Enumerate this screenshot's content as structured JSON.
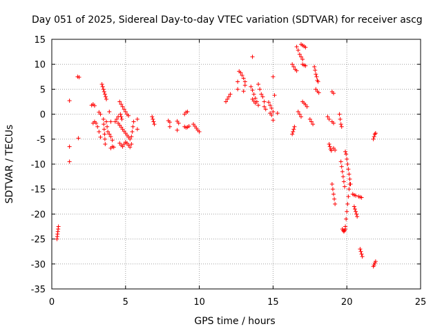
{
  "chart_data": {
    "type": "scatter",
    "title": "Day 051 of 2025, Sidereal Day-to-day VTEC variation (SDTVAR) for receiver ascg",
    "xlabel": "GPS time / hours",
    "ylabel": "SDTVAR / TECUs",
    "xlim": [
      0,
      25
    ],
    "ylim": [
      -35,
      15
    ],
    "xticks": [
      0,
      5,
      10,
      15,
      20,
      25
    ],
    "yticks": [
      -35,
      -30,
      -25,
      -20,
      -15,
      -10,
      -5,
      0,
      5,
      10,
      15
    ],
    "grid": true,
    "marker": "+",
    "color": "#ff0000",
    "segments": [
      [
        [
          0.35,
          -25.0
        ],
        [
          0.37,
          -24.5
        ],
        [
          0.39,
          -24.0
        ],
        [
          0.41,
          -23.5
        ],
        [
          0.43,
          -23.0
        ],
        [
          0.45,
          -22.5
        ]
      ],
      [
        [
          1.2,
          2.7
        ]
      ],
      [
        [
          1.2,
          -6.5
        ]
      ],
      [
        [
          1.2,
          -9.5
        ]
      ],
      [
        [
          1.75,
          7.5
        ],
        [
          1.85,
          7.4
        ]
      ],
      [
        [
          1.8,
          -4.8
        ]
      ],
      [
        [
          2.7,
          1.8
        ],
        [
          2.8,
          2.0
        ],
        [
          2.9,
          1.7
        ]
      ],
      [
        [
          2.8,
          -1.8
        ],
        [
          2.9,
          -1.5
        ],
        [
          3.0,
          -1.8
        ],
        [
          3.1,
          -2.5
        ],
        [
          3.2,
          -3.5
        ],
        [
          3.3,
          -4.6
        ]
      ],
      [
        [
          3.2,
          0.4
        ],
        [
          3.3,
          0.0
        ]
      ],
      [
        [
          3.4,
          6.0
        ],
        [
          3.45,
          5.5
        ],
        [
          3.5,
          5.0
        ],
        [
          3.55,
          4.5
        ],
        [
          3.6,
          4.0
        ],
        [
          3.65,
          3.5
        ],
        [
          3.7,
          3.0
        ]
      ],
      [
        [
          3.5,
          -1.0
        ],
        [
          3.52,
          -2.0
        ],
        [
          3.55,
          -3.0
        ],
        [
          3.58,
          -4.0
        ],
        [
          3.6,
          -5.0
        ],
        [
          3.62,
          -6.0
        ]
      ],
      [
        [
          3.7,
          -1.5
        ],
        [
          3.75,
          -2.5
        ],
        [
          3.8,
          -3.5
        ]
      ],
      [
        [
          3.9,
          0.5
        ],
        [
          4.0,
          -1.5
        ]
      ],
      [
        [
          3.9,
          -4.0
        ],
        [
          4.0,
          -4.5
        ],
        [
          4.1,
          -5.2
        ]
      ],
      [
        [
          4.0,
          -6.8
        ],
        [
          4.1,
          -6.5
        ],
        [
          4.2,
          -6.6
        ]
      ],
      [
        [
          4.3,
          -1.5
        ],
        [
          4.4,
          -1.0
        ],
        [
          4.5,
          -0.5
        ]
      ],
      [
        [
          4.5,
          -1.8
        ],
        [
          4.6,
          -2.2
        ],
        [
          4.7,
          -2.6
        ],
        [
          4.8,
          -3.0
        ],
        [
          4.9,
          -3.4
        ],
        [
          5.0,
          -3.8
        ],
        [
          5.1,
          -4.2
        ],
        [
          5.2,
          -4.6
        ],
        [
          5.3,
          -5.0
        ]
      ],
      [
        [
          4.6,
          2.5
        ],
        [
          4.7,
          2.0
        ],
        [
          4.8,
          1.5
        ],
        [
          4.9,
          1.0
        ],
        [
          5.0,
          0.5
        ],
        [
          5.1,
          0.0
        ],
        [
          5.2,
          -0.3
        ]
      ],
      [
        [
          4.6,
          -5.8
        ],
        [
          4.7,
          -6.2
        ],
        [
          4.8,
          -6.5
        ],
        [
          4.9,
          -6.0
        ],
        [
          5.0,
          -5.6
        ],
        [
          5.1,
          -5.8
        ],
        [
          5.2,
          -6.2
        ],
        [
          5.3,
          -6.6
        ],
        [
          5.4,
          -6.0
        ]
      ],
      [
        [
          4.65,
          0.0
        ],
        [
          4.7,
          -0.5
        ],
        [
          4.75,
          -1.0
        ]
      ],
      [
        [
          5.4,
          -4.5
        ],
        [
          5.45,
          -3.5
        ],
        [
          5.5,
          -2.5
        ],
        [
          5.55,
          -1.5
        ]
      ],
      [
        [
          5.8,
          -1.0
        ],
        [
          5.8,
          -3.0
        ]
      ],
      [
        [
          6.8,
          -0.5
        ],
        [
          6.85,
          -1.0
        ],
        [
          6.9,
          -1.5
        ],
        [
          6.95,
          -2.0
        ]
      ],
      [
        [
          7.9,
          -1.3
        ],
        [
          8.0,
          -1.6
        ]
      ],
      [
        [
          8.0,
          -2.5
        ]
      ],
      [
        [
          8.5,
          -1.4
        ],
        [
          8.6,
          -1.8
        ]
      ],
      [
        [
          8.5,
          -3.2
        ]
      ],
      [
        [
          9.0,
          0.0
        ],
        [
          9.1,
          0.4
        ],
        [
          9.2,
          0.5
        ]
      ],
      [
        [
          9.0,
          -2.5
        ],
        [
          9.1,
          -2.7
        ],
        [
          9.2,
          -2.6
        ],
        [
          9.3,
          -2.4
        ]
      ],
      [
        [
          9.6,
          -2.0
        ],
        [
          9.7,
          -2.4
        ],
        [
          9.8,
          -2.8
        ],
        [
          9.9,
          -3.2
        ],
        [
          10.0,
          -3.5
        ]
      ],
      [
        [
          11.8,
          2.5
        ],
        [
          11.9,
          3.0
        ],
        [
          12.0,
          3.5
        ],
        [
          12.1,
          4.0
        ]
      ],
      [
        [
          12.6,
          6.5
        ]
      ],
      [
        [
          12.6,
          5.0
        ]
      ],
      [
        [
          12.7,
          8.6
        ],
        [
          12.8,
          8.3
        ]
      ],
      [
        [
          12.9,
          7.8
        ],
        [
          13.0,
          7.2
        ],
        [
          13.1,
          6.5
        ],
        [
          13.1,
          5.8
        ]
      ],
      [
        [
          13.0,
          4.6
        ]
      ],
      [
        [
          13.6,
          11.5
        ]
      ],
      [
        [
          13.5,
          5.5
        ],
        [
          13.6,
          4.8
        ],
        [
          13.7,
          4.0
        ],
        [
          13.8,
          3.2
        ],
        [
          13.9,
          2.5
        ],
        [
          14.0,
          1.8
        ]
      ],
      [
        [
          13.6,
          3.0
        ],
        [
          13.7,
          2.6
        ],
        [
          13.8,
          2.2
        ]
      ],
      [
        [
          14.0,
          6.0
        ],
        [
          14.1,
          5.0
        ],
        [
          14.2,
          4.0
        ]
      ],
      [
        [
          14.3,
          3.5
        ],
        [
          14.4,
          2.5
        ]
      ],
      [
        [
          14.4,
          1.5
        ],
        [
          14.5,
          1.0
        ]
      ],
      [
        [
          14.7,
          2.4
        ],
        [
          14.8,
          1.8
        ],
        [
          14.9,
          1.2
        ],
        [
          15.0,
          0.5
        ]
      ],
      [
        [
          14.8,
          0.2
        ],
        [
          14.9,
          -0.2
        ]
      ],
      [
        [
          15.0,
          7.5
        ]
      ],
      [
        [
          15.1,
          3.8
        ]
      ],
      [
        [
          15.0,
          -1.2
        ]
      ],
      [
        [
          15.3,
          0.2
        ]
      ],
      [
        [
          16.3,
          10.0
        ],
        [
          16.4,
          9.5
        ],
        [
          16.5,
          9.0
        ],
        [
          16.6,
          8.7
        ]
      ],
      [
        [
          16.6,
          13.5
        ],
        [
          16.7,
          12.8
        ],
        [
          16.8,
          12.0
        ],
        [
          16.9,
          11.5
        ],
        [
          17.0,
          11.0
        ]
      ],
      [
        [
          16.9,
          14.0
        ],
        [
          17.0,
          13.8
        ],
        [
          17.1,
          13.6
        ],
        [
          17.2,
          13.4
        ]
      ],
      [
        [
          17.0,
          10.0
        ],
        [
          17.1,
          9.8
        ],
        [
          17.2,
          9.7
        ]
      ],
      [
        [
          16.3,
          -4.0
        ],
        [
          16.35,
          -3.5
        ],
        [
          16.4,
          -3.0
        ],
        [
          16.45,
          -2.5
        ]
      ],
      [
        [
          16.7,
          0.5
        ],
        [
          16.8,
          0.0
        ],
        [
          16.9,
          -0.5
        ]
      ],
      [
        [
          17.0,
          2.5
        ],
        [
          17.1,
          2.2
        ],
        [
          17.2,
          1.9
        ],
        [
          17.3,
          1.5
        ]
      ],
      [
        [
          17.5,
          -1.0
        ],
        [
          17.6,
          -1.5
        ],
        [
          17.7,
          -2.0
        ]
      ],
      [
        [
          17.8,
          9.5
        ],
        [
          17.85,
          8.8
        ],
        [
          17.9,
          8.0
        ],
        [
          17.95,
          7.5
        ],
        [
          18.0,
          6.8
        ],
        [
          18.05,
          6.5
        ]
      ],
      [
        [
          17.9,
          5.0
        ],
        [
          18.0,
          4.6
        ],
        [
          18.1,
          4.3
        ]
      ],
      [
        [
          18.7,
          -0.5
        ],
        [
          18.8,
          -1.0
        ]
      ],
      [
        [
          18.8,
          -6.0
        ],
        [
          18.85,
          -6.5
        ],
        [
          18.9,
          -7.0
        ],
        [
          18.95,
          -7.3
        ]
      ],
      [
        [
          19.0,
          4.5
        ],
        [
          19.1,
          4.2
        ]
      ],
      [
        [
          19.0,
          -1.5
        ],
        [
          19.1,
          -1.8
        ]
      ],
      [
        [
          19.1,
          -6.8
        ],
        [
          19.2,
          -7.2
        ]
      ],
      [
        [
          19.0,
          -14.0
        ],
        [
          19.05,
          -15.0
        ],
        [
          19.1,
          -16.0
        ],
        [
          19.15,
          -17.0
        ],
        [
          19.2,
          -18.0
        ]
      ],
      [
        [
          19.5,
          0.0
        ],
        [
          19.55,
          -1.0
        ],
        [
          19.6,
          -2.0
        ],
        [
          19.65,
          -2.5
        ]
      ],
      [
        [
          19.6,
          -9.5
        ],
        [
          19.65,
          -10.5
        ],
        [
          19.7,
          -11.5
        ],
        [
          19.75,
          -12.5
        ],
        [
          19.8,
          -13.5
        ],
        [
          19.85,
          -14.5
        ]
      ],
      [
        [
          19.7,
          -23.0
        ],
        [
          19.75,
          -23.3
        ],
        [
          19.8,
          -23.5
        ],
        [
          19.85,
          -23.3
        ],
        [
          19.9,
          -23.0
        ]
      ],
      [
        [
          19.9,
          -22.5
        ],
        [
          19.95,
          -21.0
        ],
        [
          20.0,
          -19.5
        ],
        [
          20.05,
          -18.0
        ],
        [
          20.1,
          -16.5
        ],
        [
          20.15,
          -15.0
        ],
        [
          20.2,
          -14.0
        ]
      ],
      [
        [
          19.9,
          -7.5
        ],
        [
          19.95,
          -8.0
        ],
        [
          20.0,
          -9.0
        ],
        [
          20.05,
          -10.0
        ],
        [
          20.1,
          -11.0
        ],
        [
          20.15,
          -12.0
        ],
        [
          20.2,
          -13.0
        ],
        [
          20.25,
          -14.0
        ]
      ],
      [
        [
          20.4,
          -16.0
        ],
        [
          20.5,
          -16.2
        ],
        [
          20.6,
          -16.3
        ]
      ],
      [
        [
          20.5,
          -18.5
        ],
        [
          20.55,
          -19.0
        ],
        [
          20.6,
          -19.5
        ],
        [
          20.65,
          -20.0
        ],
        [
          20.7,
          -20.5
        ]
      ],
      [
        [
          20.8,
          -16.5
        ],
        [
          20.9,
          -16.6
        ],
        [
          21.0,
          -16.7
        ]
      ],
      [
        [
          20.9,
          -27.0
        ],
        [
          20.95,
          -27.5
        ],
        [
          21.0,
          -28.0
        ],
        [
          21.05,
          -28.5
        ]
      ],
      [
        [
          21.8,
          -5.0
        ],
        [
          21.85,
          -4.5
        ],
        [
          21.9,
          -4.0
        ],
        [
          21.95,
          -3.8
        ]
      ],
      [
        [
          21.8,
          -30.5
        ],
        [
          21.85,
          -30.2
        ],
        [
          21.9,
          -29.8
        ],
        [
          21.95,
          -29.5
        ]
      ]
    ]
  }
}
